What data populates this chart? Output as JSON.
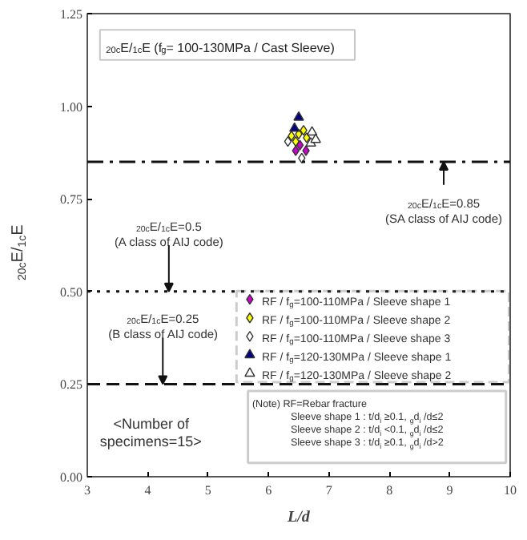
{
  "chart_data": {
    "type": "scatter",
    "title": "$_{20c}$E/$_{1c}$E (f$_{g}$= 100-130MPa / Cast Sleeve)",
    "xlabel": "L/d",
    "ylabel": "$_{20c}$E/$_{1c}$E",
    "xlim": [
      3,
      10
    ],
    "ylim": [
      0,
      1.25
    ],
    "xticks": [
      3,
      4,
      5,
      6,
      7,
      8,
      9,
      10
    ],
    "yticks": [
      {
        "value": 0,
        "label": "0.00"
      },
      {
        "value": 0.25,
        "label": "0.25"
      },
      {
        "value": 0.5,
        "label": "0.50"
      },
      {
        "value": 0.75,
        "label": "0.75"
      },
      {
        "value": 1,
        "label": "1.00"
      },
      {
        "value": 1.25,
        "label": "1.25"
      }
    ],
    "grid": false,
    "legend": "bottom right",
    "series": [
      {
        "name": "RF / f$_{g}$=100-110MPa / Sleeve shape 1",
        "color": "#cc00cc",
        "marker": "diamond",
        "x": [
          6.45,
          6.62,
          6.52
        ],
        "values": [
          0.88,
          0.88,
          0.895
        ]
      },
      {
        "name": "RF / f$_{g}$=100-110MPa / Sleeve shape 2",
        "color": "#ffff00",
        "marker": "diamond",
        "x": [
          6.38,
          6.5,
          6.58,
          6.63,
          6.45
        ],
        "values": [
          0.92,
          0.925,
          0.935,
          0.915,
          0.905
        ]
      },
      {
        "name": "RF / f$_{g}$=100-110MPa / Sleeve shape 3",
        "color": "#ffffff",
        "marker": "diamond",
        "x": [
          6.55,
          6.32
        ],
        "values": [
          0.86,
          0.905
        ]
      },
      {
        "name": "RF / f$_{g}$=120-130MPa / Sleeve shape 1",
        "color": "#000080",
        "marker": "triangle",
        "x": [
          6.5,
          6.43
        ],
        "values": [
          0.97,
          0.94
        ]
      },
      {
        "name": "RF / f$_{g}$=120-130MPa / Sleeve shape 2",
        "color": "#ffffff",
        "marker": "triangle",
        "x": [
          6.72,
          6.7,
          6.78
        ],
        "values": [
          0.93,
          0.9,
          0.91
        ]
      }
    ],
    "ref_lines": [
      {
        "axis": "y",
        "value": 0.85,
        "line_style": "dashdot"
      },
      {
        "axis": "y",
        "value": 0.5,
        "line_style": "dotted"
      },
      {
        "axis": "y",
        "value": 0.25,
        "line_style": "dashed"
      }
    ],
    "annotations": [
      {
        "text": "$_{20c}$E/$_{1c}$E=0.85\n(SA class of AIJ code)",
        "x": 8.9,
        "y": 0.85
      },
      {
        "text": "$_{20c}$E/$_{1c}$E=0.5\n(A class of AIJ code)",
        "x": 4.35,
        "y": 0.5
      },
      {
        "text": "$_{20c}$E/$_{1c}$E=0.25\n(B class of AIJ code)",
        "x": 4.25,
        "y": 0.25
      },
      "<Number of\nspecimens=15>",
      "(Note)  RF=Rebar fracture\nSleeve shape 1 : t/d$_{i}$ ≥0.1, $_{g}$d$_{i}$ /d≤2\nSleeve shape 2 : t/d$_{i}$ <0.1, $_{g}$d$_{i}$ /d≤2\nSleeve shape 3 : t/d$_{i}$ ≥0.1, $_{g}$d$_{i}$ /d>2"
    ]
  }
}
